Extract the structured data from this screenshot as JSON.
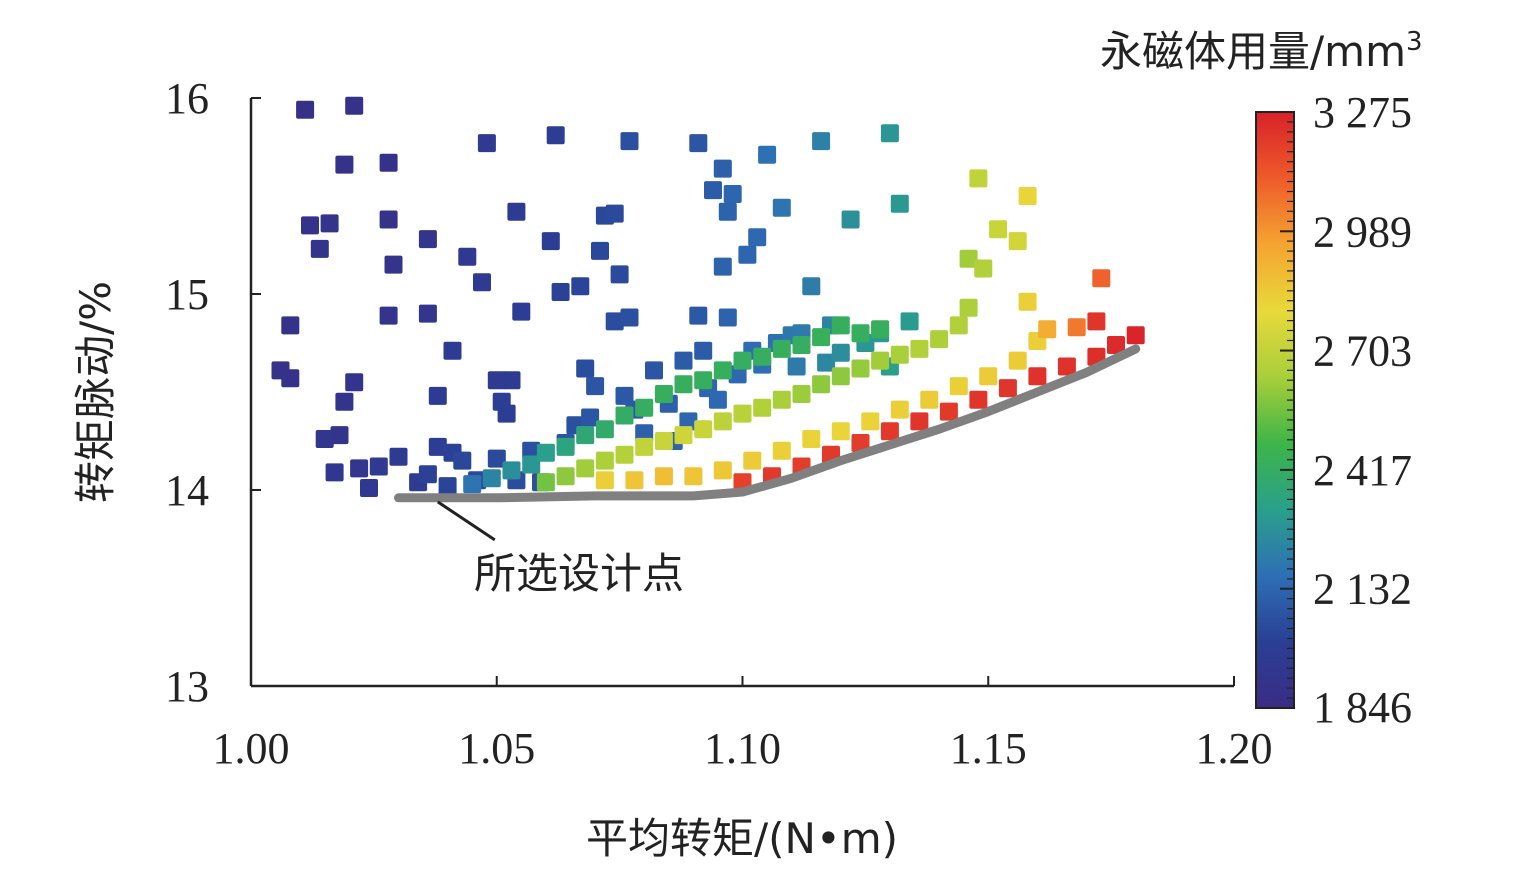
{
  "chart_data": {
    "type": "scatter",
    "xlabel": "平均转矩/(N•m)",
    "ylabel": "转矩脉动/%",
    "xlim": [
      1.0,
      1.2
    ],
    "ylim": [
      13,
      16
    ],
    "x_ticks": [
      "1.00",
      "1.05",
      "1.10",
      "1.15",
      "1.20"
    ],
    "y_ticks": [
      "13",
      "14",
      "15",
      "16"
    ],
    "colorbar": {
      "title_main": "永磁体用量/mm",
      "title_sup": "3",
      "min": 1846,
      "max": 3275,
      "tick_values": [
        3275,
        2989,
        2703,
        2417,
        2132,
        1846
      ],
      "tick_labels": [
        "3 275",
        "2 989",
        "2 703",
        "2 417",
        "2 132",
        "1 846"
      ],
      "colormap": [
        "#3b2c85",
        "#2a3f94",
        "#2e6fb5",
        "#2aa08a",
        "#3db548",
        "#a9cf3a",
        "#e8d93a",
        "#f5a431",
        "#ee5a2a",
        "#d8222a"
      ]
    },
    "annotation": {
      "text": "所选设计点",
      "point": [
        1.038,
        13.97
      ]
    },
    "pareto_front": {
      "color": "#808080",
      "x": [
        1.03,
        1.05,
        1.07,
        1.09,
        1.1,
        1.11,
        1.12,
        1.13,
        1.14,
        1.15,
        1.16,
        1.17,
        1.18
      ],
      "y": [
        13.96,
        13.96,
        13.97,
        13.97,
        13.99,
        14.06,
        14.15,
        14.23,
        14.31,
        14.4,
        14.5,
        14.6,
        14.72
      ]
    },
    "points": [
      [
        1.011,
        15.94,
        1880
      ],
      [
        1.021,
        15.96,
        1890
      ],
      [
        1.019,
        15.66,
        1900
      ],
      [
        1.028,
        15.67,
        1900
      ],
      [
        1.012,
        15.35,
        1900
      ],
      [
        1.016,
        15.36,
        1910
      ],
      [
        1.014,
        15.23,
        1920
      ],
      [
        1.028,
        15.38,
        1900
      ],
      [
        1.036,
        15.28,
        1920
      ],
      [
        1.029,
        15.15,
        1910
      ],
      [
        1.008,
        14.84,
        1890
      ],
      [
        1.028,
        14.89,
        1920
      ],
      [
        1.036,
        14.9,
        1930
      ],
      [
        1.006,
        14.61,
        1890
      ],
      [
        1.008,
        14.57,
        1890
      ],
      [
        1.021,
        14.55,
        1920
      ],
      [
        1.019,
        14.45,
        1920
      ],
      [
        1.015,
        14.26,
        1930
      ],
      [
        1.018,
        14.28,
        1920
      ],
      [
        1.022,
        14.11,
        1930
      ],
      [
        1.017,
        14.09,
        1940
      ],
      [
        1.024,
        14.01,
        1950
      ],
      [
        1.026,
        14.12,
        1960
      ],
      [
        1.03,
        14.17,
        1970
      ],
      [
        1.034,
        14.04,
        1970
      ],
      [
        1.038,
        14.48,
        1980
      ],
      [
        1.041,
        14.71,
        1980
      ],
      [
        1.038,
        14.22,
        1990
      ],
      [
        1.041,
        14.19,
        2010
      ],
      [
        1.036,
        14.08,
        2010
      ],
      [
        1.04,
        14.02,
        2020
      ],
      [
        1.043,
        14.15,
        2030
      ],
      [
        1.046,
        14.05,
        2040
      ],
      [
        1.044,
        15.19,
        1950
      ],
      [
        1.047,
        15.06,
        1960
      ],
      [
        1.048,
        15.77,
        1960
      ],
      [
        1.05,
        14.56,
        1970
      ],
      [
        1.053,
        14.56,
        1980
      ],
      [
        1.051,
        14.45,
        1990
      ],
      [
        1.052,
        14.39,
        2000
      ],
      [
        1.054,
        15.42,
        1980
      ],
      [
        1.055,
        14.91,
        1990
      ],
      [
        1.05,
        14.16,
        2040
      ],
      [
        1.054,
        14.05,
        2050
      ],
      [
        1.057,
        14.2,
        2060
      ],
      [
        1.059,
        14.04,
        2060
      ],
      [
        1.062,
        15.81,
        2000
      ],
      [
        1.061,
        15.27,
        2000
      ],
      [
        1.063,
        15.01,
        2010
      ],
      [
        1.067,
        15.04,
        2020
      ],
      [
        1.066,
        14.33,
        2060
      ],
      [
        1.069,
        14.37,
        2080
      ],
      [
        1.064,
        14.24,
        2080
      ],
      [
        1.068,
        14.62,
        2050
      ],
      [
        1.07,
        14.53,
        2080
      ],
      [
        1.071,
        15.22,
        2030
      ],
      [
        1.072,
        15.4,
        2030
      ],
      [
        1.074,
        15.41,
        2040
      ],
      [
        1.075,
        15.1,
        2040
      ],
      [
        1.074,
        14.86,
        2050
      ],
      [
        1.077,
        15.78,
        2060
      ],
      [
        1.077,
        14.88,
        2060
      ],
      [
        1.076,
        14.48,
        2090
      ],
      [
        1.078,
        14.41,
        2090
      ],
      [
        1.08,
        14.29,
        2110
      ],
      [
        1.082,
        14.61,
        2080
      ],
      [
        1.085,
        14.44,
        2110
      ],
      [
        1.088,
        14.66,
        2100
      ],
      [
        1.086,
        14.25,
        2120
      ],
      [
        1.089,
        14.35,
        2130
      ],
      [
        1.091,
        15.77,
        2080
      ],
      [
        1.091,
        14.89,
        2090
      ],
      [
        1.092,
        14.71,
        2100
      ],
      [
        1.093,
        14.52,
        2130
      ],
      [
        1.095,
        14.46,
        2140
      ],
      [
        1.094,
        15.53,
        2100
      ],
      [
        1.096,
        15.64,
        2110
      ],
      [
        1.097,
        15.42,
        2120
      ],
      [
        1.096,
        15.14,
        2120
      ],
      [
        1.097,
        14.88,
        2120
      ],
      [
        1.098,
        15.51,
        2130
      ],
      [
        1.101,
        15.2,
        2130
      ],
      [
        1.103,
        15.29,
        2140
      ],
      [
        1.099,
        14.59,
        2140
      ],
      [
        1.102,
        14.71,
        2150
      ],
      [
        1.104,
        14.64,
        2160
      ],
      [
        1.105,
        15.71,
        2170
      ],
      [
        1.108,
        15.44,
        2180
      ],
      [
        1.107,
        14.75,
        2170
      ],
      [
        1.11,
        14.79,
        2190
      ],
      [
        1.111,
        14.63,
        2200
      ],
      [
        1.112,
        14.8,
        2200
      ],
      [
        1.114,
        15.04,
        2210
      ],
      [
        1.116,
        15.78,
        2220
      ],
      [
        1.117,
        14.65,
        2240
      ],
      [
        1.118,
        14.84,
        2230
      ],
      [
        1.12,
        14.7,
        2260
      ],
      [
        1.122,
        15.38,
        2270
      ],
      [
        1.125,
        14.75,
        2290
      ],
      [
        1.128,
        14.8,
        2300
      ],
      [
        1.13,
        15.82,
        2290
      ],
      [
        1.132,
        15.46,
        2300
      ],
      [
        1.13,
        14.63,
        2320
      ],
      [
        1.134,
        14.86,
        2310
      ],
      [
        1.045,
        14.03,
        2180
      ],
      [
        1.049,
        14.06,
        2230
      ],
      [
        1.053,
        14.1,
        2260
      ],
      [
        1.057,
        14.13,
        2290
      ],
      [
        1.06,
        14.19,
        2320
      ],
      [
        1.064,
        14.22,
        2350
      ],
      [
        1.068,
        14.28,
        2370
      ],
      [
        1.072,
        14.31,
        2400
      ],
      [
        1.076,
        14.38,
        2410
      ],
      [
        1.08,
        14.42,
        2420
      ],
      [
        1.084,
        14.49,
        2430
      ],
      [
        1.088,
        14.54,
        2430
      ],
      [
        1.092,
        14.56,
        2430
      ],
      [
        1.096,
        14.61,
        2430
      ],
      [
        1.1,
        14.66,
        2420
      ],
      [
        1.104,
        14.68,
        2420
      ],
      [
        1.108,
        14.72,
        2430
      ],
      [
        1.112,
        14.74,
        2420
      ],
      [
        1.116,
        14.78,
        2440
      ],
      [
        1.12,
        14.84,
        2430
      ],
      [
        1.124,
        14.8,
        2430
      ],
      [
        1.128,
        14.82,
        2430
      ],
      [
        1.06,
        14.04,
        2560
      ],
      [
        1.064,
        14.07,
        2600
      ],
      [
        1.068,
        14.11,
        2630
      ],
      [
        1.072,
        14.15,
        2650
      ],
      [
        1.076,
        14.18,
        2670
      ],
      [
        1.08,
        14.22,
        2700
      ],
      [
        1.084,
        14.25,
        2720
      ],
      [
        1.088,
        14.28,
        2730
      ],
      [
        1.092,
        14.31,
        2720
      ],
      [
        1.096,
        14.35,
        2690
      ],
      [
        1.1,
        14.39,
        2680
      ],
      [
        1.104,
        14.42,
        2660
      ],
      [
        1.108,
        14.46,
        2640
      ],
      [
        1.112,
        14.49,
        2620
      ],
      [
        1.116,
        14.54,
        2600
      ],
      [
        1.12,
        14.58,
        2600
      ],
      [
        1.124,
        14.62,
        2610
      ],
      [
        1.128,
        14.66,
        2630
      ],
      [
        1.132,
        14.69,
        2640
      ],
      [
        1.136,
        14.72,
        2660
      ],
      [
        1.14,
        14.77,
        2650
      ],
      [
        1.144,
        14.84,
        2660
      ],
      [
        1.146,
        14.93,
        2650
      ],
      [
        1.146,
        15.18,
        2630
      ],
      [
        1.149,
        15.13,
        2660
      ],
      [
        1.148,
        15.59,
        2700
      ],
      [
        1.152,
        15.33,
        2720
      ],
      [
        1.156,
        15.27,
        2740
      ],
      [
        1.158,
        15.5,
        2810
      ],
      [
        1.072,
        14.05,
        2830
      ],
      [
        1.078,
        14.05,
        2860
      ],
      [
        1.084,
        14.07,
        2880
      ],
      [
        1.09,
        14.07,
        2860
      ],
      [
        1.096,
        14.1,
        2850
      ],
      [
        1.102,
        14.15,
        2840
      ],
      [
        1.108,
        14.2,
        2830
      ],
      [
        1.114,
        14.26,
        2820
      ],
      [
        1.12,
        14.3,
        2810
      ],
      [
        1.126,
        14.35,
        2820
      ],
      [
        1.132,
        14.41,
        2830
      ],
      [
        1.138,
        14.46,
        2840
      ],
      [
        1.144,
        14.53,
        2830
      ],
      [
        1.15,
        14.58,
        2840
      ],
      [
        1.156,
        14.66,
        2840
      ],
      [
        1.16,
        14.76,
        2830
      ],
      [
        1.158,
        14.96,
        2830
      ],
      [
        1.162,
        14.82,
        2930
      ],
      [
        1.168,
        14.83,
        3050
      ],
      [
        1.173,
        15.08,
        3100
      ],
      [
        1.1,
        14.04,
        3190
      ],
      [
        1.106,
        14.07,
        3210
      ],
      [
        1.112,
        14.12,
        3200
      ],
      [
        1.118,
        14.18,
        3210
      ],
      [
        1.124,
        14.24,
        3200
      ],
      [
        1.13,
        14.3,
        3210
      ],
      [
        1.136,
        14.35,
        3220
      ],
      [
        1.142,
        14.4,
        3210
      ],
      [
        1.148,
        14.46,
        3220
      ],
      [
        1.154,
        14.52,
        3220
      ],
      [
        1.16,
        14.58,
        3230
      ],
      [
        1.166,
        14.63,
        3230
      ],
      [
        1.172,
        14.68,
        3240
      ],
      [
        1.176,
        14.74,
        3250
      ],
      [
        1.18,
        14.79,
        3270
      ],
      [
        1.172,
        14.86,
        3220
      ]
    ]
  }
}
